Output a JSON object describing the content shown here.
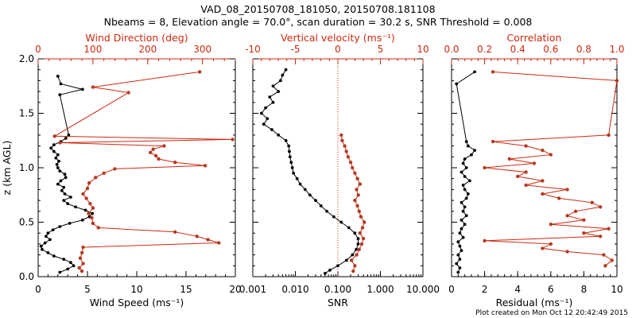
{
  "title_line1": "VAD_08_20150708_181050, 20150708.181108",
  "title_line2": "Nbeams = 8, Elevation angle = 70.0°, scan duration = 30.2 s, SNR Threshold = 0.008",
  "footer": "Plot created on Mon Oct 12 20:42:49 2015",
  "colors": {
    "black": "#000000",
    "red": "#cc2a10",
    "marker_red": "#b33a22"
  },
  "chart_data": [
    {
      "id": "left",
      "type": "line",
      "ylabel": "z (km AGL)",
      "ylim": [
        0,
        2.0
      ],
      "yticks": [
        "0.0",
        "0.5",
        "1.0",
        "1.5",
        "2.0"
      ],
      "bottom_axis": {
        "label": "Wind Speed (ms⁻¹)",
        "range": [
          0,
          20
        ],
        "ticks": [
          "0",
          "5",
          "10",
          "15",
          "20"
        ],
        "tick_values": [
          0,
          5,
          10,
          15,
          20
        ]
      },
      "top_axis": {
        "label": "Wind Direction (deg)",
        "range": [
          0,
          360
        ],
        "ticks": [
          "0",
          "100",
          "200",
          "300"
        ],
        "tick_values": [
          0,
          100,
          200,
          300
        ]
      },
      "series": [
        {
          "name": "Wind Speed",
          "axis": "bottom",
          "color": "black",
          "z": [
            0.04,
            0.07,
            0.1,
            0.13,
            0.16,
            0.19,
            0.22,
            0.25,
            0.28,
            0.31,
            0.34,
            0.37,
            0.4,
            0.43,
            0.46,
            0.49,
            0.52,
            0.55,
            0.58,
            0.61,
            0.64,
            0.67,
            0.7,
            0.73,
            0.76,
            0.79,
            0.82,
            0.85,
            0.88,
            0.91,
            0.94,
            0.97,
            1.0,
            1.03,
            1.06,
            1.09,
            1.12,
            1.15,
            1.18,
            1.21,
            1.24,
            1.27,
            1.3,
            1.67,
            1.72,
            1.77,
            1.84
          ],
          "values": [
            2.2,
            3.0,
            3.6,
            3.3,
            2.6,
            1.6,
            1.0,
            0.4,
            0.3,
            0.7,
            1.2,
            0.8,
            1.0,
            1.5,
            2.2,
            3.2,
            4.5,
            5.2,
            5.5,
            4.8,
            3.8,
            3.0,
            2.6,
            3.3,
            2.7,
            2.4,
            2.6,
            2.0,
            2.3,
            2.8,
            2.7,
            2.2,
            2.0,
            1.9,
            2.1,
            1.8,
            2.0,
            1.6,
            1.3,
            1.6,
            2.3,
            2.8,
            3.1,
            2.2,
            4.5,
            2.3,
            2.0
          ]
        },
        {
          "name": "Wind Direction",
          "axis": "top",
          "color": "red",
          "z": [
            0.05,
            0.08,
            0.12,
            0.17,
            0.22,
            0.27,
            0.31,
            0.34,
            0.37,
            0.41,
            0.45,
            0.49,
            0.54,
            0.58,
            0.63,
            0.67,
            0.72,
            0.76,
            0.81,
            0.86,
            0.91,
            0.95,
            0.99,
            1.02,
            1.05,
            1.08,
            1.11,
            1.14,
            1.17,
            1.2,
            1.23,
            1.26,
            1.29,
            1.69,
            1.74,
            1.88
          ],
          "values": [
            80,
            75,
            82,
            77,
            80,
            82,
            330,
            310,
            290,
            250,
            110,
            100,
            98,
            92,
            100,
            95,
            88,
            82,
            90,
            93,
            105,
            120,
            140,
            305,
            250,
            220,
            215,
            205,
            210,
            230,
            40,
            355,
            30,
            165,
            100,
            295
          ]
        }
      ]
    },
    {
      "id": "middle",
      "type": "line",
      "ylim": [
        0,
        2.0
      ],
      "bottom_axis": {
        "label": "SNR",
        "scale": "log",
        "range": [
          0.001,
          10.0
        ],
        "ticks": [
          "0.001",
          "0.010",
          "0.100",
          "1.000",
          "10.000"
        ],
        "tick_values": [
          0.001,
          0.01,
          0.1,
          1.0,
          10.0
        ]
      },
      "top_axis": {
        "label": "Vertical velocity (ms⁻¹)",
        "range": [
          -10,
          10
        ],
        "ticks": [
          "-10",
          "-5",
          "0",
          "5",
          "10"
        ],
        "tick_values": [
          -10,
          -5,
          0,
          5,
          10
        ]
      },
      "reference_line": {
        "axis": "top",
        "value": 0,
        "style": "dotted"
      },
      "series": [
        {
          "name": "SNR",
          "axis": "bottom",
          "color": "black",
          "z": [
            0.03,
            0.06,
            0.1,
            0.15,
            0.2,
            0.25,
            0.3,
            0.35,
            0.4,
            0.45,
            0.5,
            0.55,
            0.6,
            0.65,
            0.7,
            0.75,
            0.8,
            0.85,
            0.9,
            0.95,
            1.0,
            1.05,
            1.1,
            1.15,
            1.2,
            1.25,
            1.3,
            1.35,
            1.4,
            1.45,
            1.5,
            1.55,
            1.6,
            1.65,
            1.7,
            1.75,
            1.8,
            1.85,
            1.9
          ],
          "values": [
            0.05,
            0.065,
            0.1,
            0.16,
            0.22,
            0.27,
            0.3,
            0.3,
            0.25,
            0.18,
            0.12,
            0.08,
            0.055,
            0.04,
            0.03,
            0.022,
            0.017,
            0.013,
            0.011,
            0.009,
            0.0085,
            0.008,
            0.0075,
            0.0072,
            0.007,
            0.006,
            0.004,
            0.0028,
            0.0018,
            0.0022,
            0.0016,
            0.002,
            0.003,
            0.0025,
            0.004,
            0.003,
            0.0045,
            0.005,
            0.006
          ]
        },
        {
          "name": "Vertical velocity",
          "axis": "top",
          "color": "red",
          "z": [
            0.05,
            0.1,
            0.15,
            0.2,
            0.25,
            0.3,
            0.35,
            0.4,
            0.45,
            0.5,
            0.55,
            0.6,
            0.65,
            0.7,
            0.75,
            0.8,
            0.85,
            0.9,
            0.95,
            1.0,
            1.05,
            1.1,
            1.15,
            1.2,
            1.25,
            1.3
          ],
          "values": [
            1.8,
            2.0,
            1.6,
            2.2,
            2.5,
            2.8,
            3.0,
            2.6,
            2.9,
            3.1,
            2.7,
            2.5,
            2.3,
            2.0,
            2.4,
            2.2,
            2.6,
            2.3,
            2.0,
            1.7,
            1.5,
            1.2,
            1.0,
            0.8,
            0.5,
            0.4
          ]
        }
      ]
    },
    {
      "id": "right",
      "type": "line",
      "ylim": [
        0,
        2.0
      ],
      "bottom_axis": {
        "label": "Residual (ms⁻¹)",
        "range": [
          0,
          10
        ],
        "ticks": [
          "0",
          "2",
          "4",
          "6",
          "8",
          "10"
        ],
        "tick_values": [
          0,
          2,
          4,
          6,
          8,
          10
        ]
      },
      "top_axis": {
        "label": "Correlation",
        "range": [
          0,
          1.0
        ],
        "ticks": [
          "0.0",
          "0.2",
          "0.4",
          "0.6",
          "0.8",
          "1.0"
        ],
        "tick_values": [
          0,
          0.2,
          0.4,
          0.6,
          0.8,
          1.0
        ]
      },
      "series": [
        {
          "name": "Residual",
          "axis": "bottom",
          "color": "black",
          "z": [
            0.04,
            0.08,
            0.12,
            0.16,
            0.2,
            0.24,
            0.28,
            0.32,
            0.36,
            0.4,
            0.44,
            0.48,
            0.52,
            0.56,
            0.6,
            0.64,
            0.68,
            0.72,
            0.76,
            0.8,
            0.84,
            0.88,
            0.92,
            0.96,
            1.0,
            1.04,
            1.08,
            1.12,
            1.16,
            1.2,
            1.24,
            1.77,
            1.88
          ],
          "values": [
            0.4,
            0.5,
            0.3,
            0.5,
            0.4,
            0.6,
            0.5,
            0.4,
            0.7,
            0.5,
            0.6,
            0.8,
            0.6,
            0.9,
            0.7,
            0.8,
            0.6,
            0.9,
            1.0,
            0.8,
            0.7,
            1.1,
            0.8,
            0.6,
            0.9,
            0.7,
            0.8,
            1.2,
            1.4,
            1.0,
            0.9,
            0.3,
            1.4
          ]
        },
        {
          "name": "Correlation",
          "axis": "top",
          "color": "red",
          "z": [
            0.1,
            0.15,
            0.2,
            0.23,
            0.26,
            0.3,
            0.33,
            0.37,
            0.4,
            0.44,
            0.48,
            0.52,
            0.56,
            0.6,
            0.64,
            0.68,
            0.72,
            0.76,
            0.8,
            0.84,
            0.88,
            0.92,
            0.96,
            1.0,
            1.04,
            1.08,
            1.12,
            1.16,
            1.2,
            1.24,
            1.3,
            1.8,
            1.88
          ],
          "values": [
            0.93,
            0.97,
            0.92,
            0.7,
            0.55,
            0.6,
            0.2,
            0.9,
            0.8,
            0.95,
            0.6,
            0.8,
            0.7,
            0.75,
            0.9,
            0.85,
            0.65,
            0.55,
            0.7,
            0.45,
            0.55,
            0.4,
            0.45,
            0.2,
            0.5,
            0.35,
            0.6,
            0.55,
            0.45,
            0.25,
            0.95,
            1.0,
            0.25
          ]
        }
      ]
    }
  ]
}
